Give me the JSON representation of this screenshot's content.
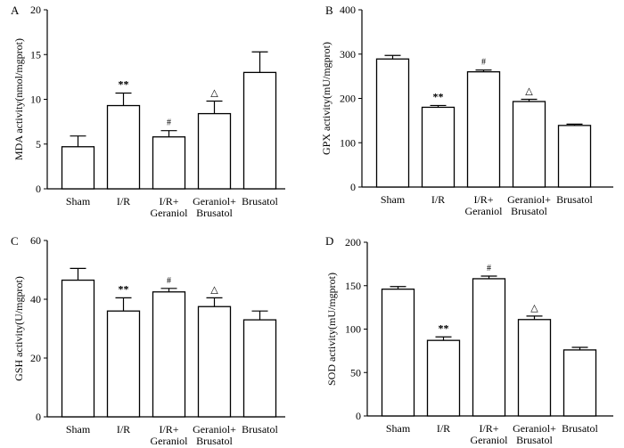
{
  "chart_data": [
    {
      "panel": "A",
      "type": "bar",
      "ylabel": "MDA activity(nmol/mgprot)",
      "ylim": [
        0,
        20
      ],
      "yticks": [
        0,
        5,
        10,
        15,
        20
      ],
      "categories": [
        [
          "Sham"
        ],
        [
          "I/R"
        ],
        [
          "I/R+",
          "Geraniol"
        ],
        [
          "Geraniol+",
          "Brusatol"
        ],
        [
          "Brusatol"
        ]
      ],
      "values": [
        4.7,
        9.3,
        5.8,
        8.4,
        13.0
      ],
      "errors": [
        1.2,
        1.4,
        0.7,
        1.4,
        2.3
      ],
      "significance": [
        "",
        "**",
        "#",
        "△",
        ""
      ]
    },
    {
      "panel": "B",
      "type": "bar",
      "ylabel": "GPX activity(mU/mgprot)",
      "ylim": [
        0,
        400
      ],
      "yticks": [
        0,
        100,
        200,
        300,
        400
      ],
      "categories": [
        [
          "Sham"
        ],
        [
          "I/R"
        ],
        [
          "I/R+",
          "Geraniol"
        ],
        [
          "Geraniol+",
          "Brusatol"
        ],
        [
          "Brusatol"
        ]
      ],
      "values": [
        289,
        180,
        260,
        193,
        139
      ],
      "errors": [
        8,
        4,
        4,
        5,
        3
      ],
      "significance": [
        "",
        "**",
        "#",
        "△",
        ""
      ]
    },
    {
      "panel": "C",
      "type": "bar",
      "ylabel": "GSH activity(U/mgprot)",
      "ylim": [
        0,
        60
      ],
      "yticks": [
        0,
        20,
        40,
        60
      ],
      "categories": [
        [
          "Sham"
        ],
        [
          "I/R"
        ],
        [
          "I/R+",
          "Geraniol"
        ],
        [
          "Geraniol+",
          "Brusatol"
        ],
        [
          "Brusatol"
        ]
      ],
      "values": [
        46.5,
        36.0,
        42.5,
        37.5,
        33.0
      ],
      "errors": [
        4.0,
        4.5,
        1.2,
        3.0,
        3.0
      ],
      "significance": [
        "",
        "**",
        "#",
        "△",
        ""
      ]
    },
    {
      "panel": "D",
      "type": "bar",
      "ylabel": "SOD activity(mU/mgprot)",
      "ylim": [
        0,
        200
      ],
      "yticks": [
        0,
        50,
        100,
        150,
        200
      ],
      "categories": [
        [
          "Sham"
        ],
        [
          "I/R"
        ],
        [
          "I/R+",
          "Geraniol"
        ],
        [
          "Geraniol+",
          "Brusatol"
        ],
        [
          "Brusatol"
        ]
      ],
      "values": [
        146,
        87,
        158,
        111,
        76
      ],
      "errors": [
        3,
        4,
        3,
        4,
        3
      ],
      "significance": [
        "",
        "**",
        "#",
        "△",
        ""
      ]
    }
  ]
}
